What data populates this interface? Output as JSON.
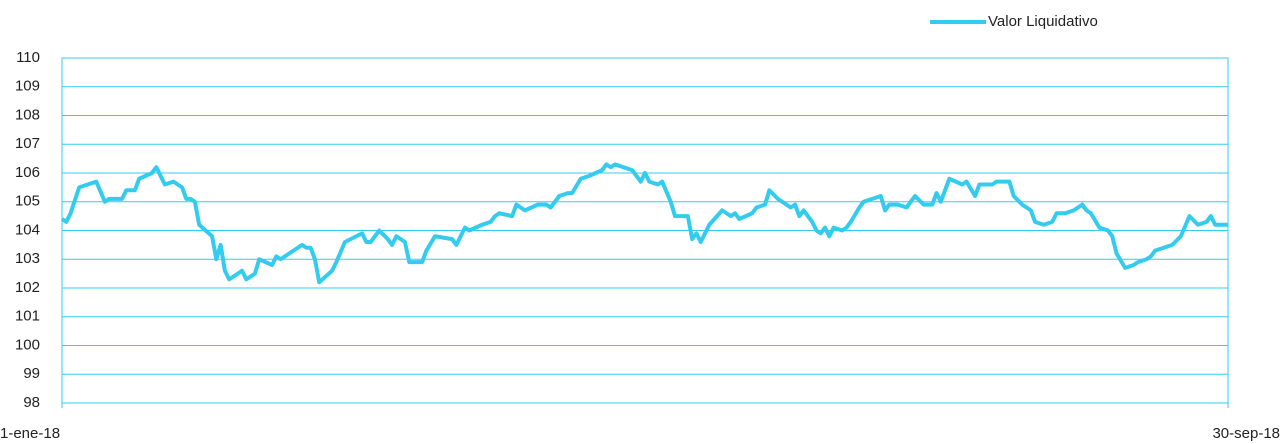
{
  "chart_data": {
    "type": "line",
    "x": [
      0,
      1,
      2,
      4,
      8,
      10,
      11,
      14,
      15,
      17,
      18,
      21,
      22,
      24,
      26,
      28,
      29,
      30,
      31,
      32,
      35,
      36,
      37,
      38,
      39,
      42,
      43,
      45,
      46,
      49,
      50,
      51,
      54,
      56,
      57,
      58,
      59,
      60,
      63,
      64,
      66,
      70,
      71,
      72,
      74,
      76,
      77,
      78,
      80,
      81,
      84,
      85,
      87,
      91,
      92,
      94,
      95,
      98,
      100,
      101,
      102,
      105,
      106,
      108,
      111,
      113,
      114,
      116,
      118,
      119,
      121,
      123,
      126,
      127,
      128,
      129,
      131,
      133,
      135,
      136,
      137,
      139,
      140,
      142,
      143,
      146,
      147,
      148,
      149,
      151,
      154,
      156,
      157,
      158,
      161,
      162,
      164,
      165,
      167,
      168,
      170,
      171,
      172,
      173,
      175,
      176,
      177,
      178,
      179,
      180,
      182,
      183,
      184,
      186,
      187,
      189,
      191,
      192,
      193,
      195,
      197,
      199,
      201,
      203,
      204,
      205,
      207,
      210,
      211,
      213,
      214,
      217,
      218,
      221,
      222,
      224,
      226,
      227,
      229,
      231,
      232,
      234,
      236,
      238,
      239,
      240,
      242,
      244,
      245,
      246,
      248,
      250,
      251,
      253,
      254,
      255,
      257,
      259,
      261,
      263,
      265,
      267,
      268,
      269,
      272
    ],
    "series": [
      {
        "name": "Valor Liquidativo",
        "color": "#33ccee",
        "values": [
          104.4,
          104.3,
          104.6,
          105.5,
          105.7,
          105.0,
          105.1,
          105.1,
          105.4,
          105.4,
          105.8,
          106.0,
          106.2,
          105.6,
          105.7,
          105.5,
          105.1,
          105.1,
          105.0,
          104.2,
          103.8,
          103.0,
          103.5,
          102.6,
          102.3,
          102.6,
          102.3,
          102.5,
          103.0,
          102.8,
          103.1,
          103.0,
          103.3,
          103.5,
          103.4,
          103.4,
          103.0,
          102.2,
          102.6,
          102.9,
          103.6,
          103.9,
          103.6,
          103.6,
          104.0,
          103.7,
          103.5,
          103.8,
          103.6,
          102.9,
          102.9,
          103.3,
          103.8,
          103.7,
          103.5,
          104.1,
          104.0,
          104.2,
          104.3,
          104.5,
          104.6,
          104.5,
          104.9,
          104.7,
          104.9,
          104.9,
          104.8,
          105.2,
          105.3,
          105.3,
          105.8,
          105.9,
          106.1,
          106.3,
          106.2,
          106.3,
          106.2,
          106.1,
          105.7,
          106.0,
          105.7,
          105.6,
          105.7,
          105.0,
          104.5,
          104.5,
          103.7,
          103.9,
          103.6,
          104.2,
          104.7,
          104.5,
          104.6,
          104.4,
          104.6,
          104.8,
          104.9,
          105.4,
          105.1,
          105.0,
          104.8,
          104.9,
          104.5,
          104.7,
          104.3,
          104.0,
          103.9,
          104.1,
          103.8,
          104.1,
          104.0,
          104.1,
          104.3,
          104.8,
          105.0,
          105.1,
          105.2,
          104.7,
          104.9,
          104.9,
          104.8,
          105.2,
          104.9,
          104.9,
          105.3,
          105.0,
          105.8,
          105.6,
          105.7,
          105.2,
          105.6,
          105.6,
          105.7,
          105.7,
          105.2,
          104.9,
          104.7,
          104.3,
          104.2,
          104.3,
          104.6,
          104.6,
          104.7,
          104.9,
          104.7,
          104.6,
          104.1,
          104.0,
          103.8,
          103.2,
          102.7,
          102.8,
          102.9,
          103.0,
          103.1,
          103.3,
          103.4,
          103.5,
          103.8,
          104.5,
          104.2,
          104.3,
          104.5,
          104.2,
          104.2
        ]
      }
    ],
    "xlim": [
      0,
      272
    ],
    "xticks": [
      {
        "value": 0,
        "label": "1-ene-18"
      },
      {
        "value": 272,
        "label": "30-sep-18"
      }
    ],
    "ylim": [
      98,
      110
    ],
    "yticks": [
      98,
      99,
      100,
      101,
      102,
      103,
      104,
      105,
      106,
      107,
      108,
      109,
      110
    ],
    "grid": true,
    "legend": "top-right",
    "grid_color": "#33ccee"
  }
}
